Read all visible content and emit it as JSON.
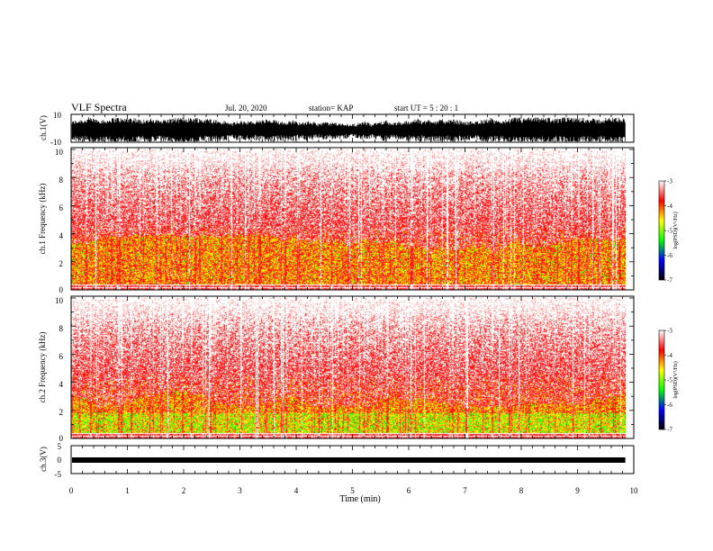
{
  "header": {
    "title": "VLF Spectra",
    "date": "Jul. 20, 2020",
    "station": "station= KAP",
    "start": "start  UT =   5 : 20 : 1"
  },
  "colorbar": {
    "label": "log(PSD)(V²/Hz)",
    "ticks": [
      "-3",
      "-4",
      "-5",
      "-6",
      "-7"
    ],
    "colors": [
      "#ffffff",
      "#ff0000",
      "#ffff00",
      "#00ff00",
      "#0000ff",
      "#000000"
    ]
  },
  "chart_data": [
    {
      "type": "line",
      "name": "waveform-ch1",
      "ylabel": "ch.1(V)",
      "ylim": [
        -10,
        10
      ],
      "yticks": [
        "10",
        "-10"
      ],
      "xlim": [
        0,
        10
      ]
    },
    {
      "type": "heatmap",
      "name": "spectrogram-ch1",
      "ylabel": "ch.1  Frequency (kHz)",
      "ylim": [
        0,
        10
      ],
      "yticks": [
        "10",
        "8",
        "6",
        "4",
        "2",
        "0"
      ],
      "xlim": [
        0,
        10
      ],
      "data_end_min": 9.85,
      "clim": [
        -7,
        -3
      ]
    },
    {
      "type": "heatmap",
      "name": "spectrogram-ch2",
      "ylabel": "ch.2  Frequency (kHz)",
      "ylim": [
        0,
        10
      ],
      "yticks": [
        "10",
        "8",
        "6",
        "4",
        "2",
        "0"
      ],
      "xlim": [
        0,
        10
      ],
      "data_end_min": 9.85,
      "clim": [
        -7,
        -3
      ]
    },
    {
      "type": "line",
      "name": "waveform-ch3",
      "ylabel": "ch.3(V)",
      "ylim": [
        -5,
        5
      ],
      "yticks": [
        "5",
        "0",
        "-5"
      ],
      "xlim": [
        0,
        10
      ],
      "xlabel": "Time (min)",
      "xticks": [
        "0",
        "1",
        "2",
        "3",
        "4",
        "5",
        "6",
        "7",
        "8",
        "9",
        "10"
      ]
    }
  ]
}
